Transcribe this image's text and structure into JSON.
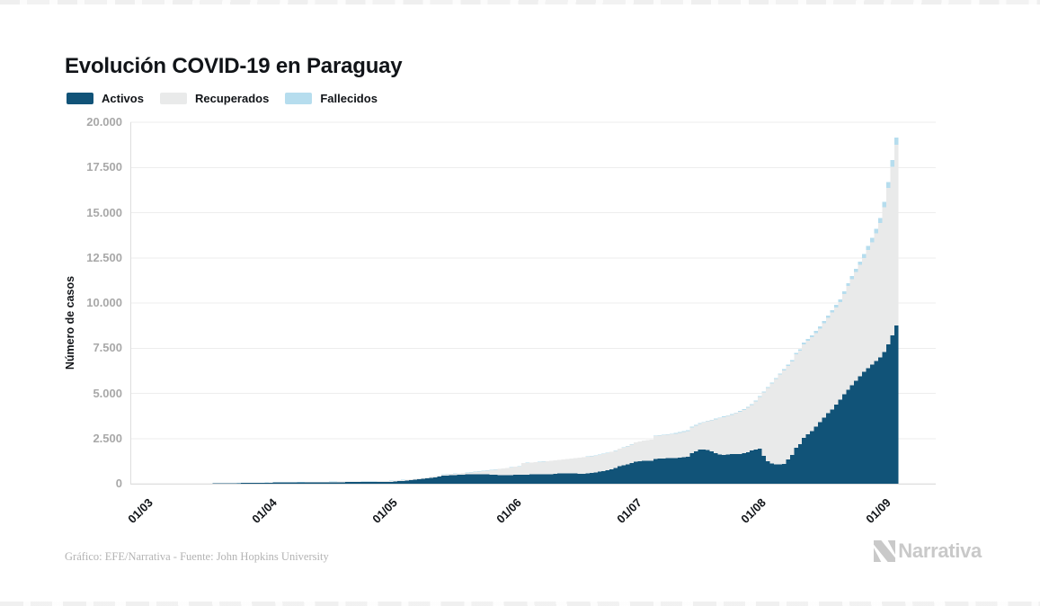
{
  "page": {
    "title": "Evolución COVID-19 en Paraguay"
  },
  "legend": [
    {
      "label": "Activos",
      "color": "#115378"
    },
    {
      "label": "Recuperados",
      "color": "#e9eaea"
    },
    {
      "label": "Fallecidos",
      "color": "#b6ddee"
    }
  ],
  "footer": {
    "credit": "Gráfico: EFE/Narrativa - Fuente: John Hopkins University",
    "brand": "Narrativa"
  },
  "colors": {
    "grid": "#ededed",
    "axis": "#dedede",
    "tick_text": "#a8a8a8",
    "label_text": "#111418",
    "background": "#ffffff"
  },
  "chart_data": {
    "type": "bar",
    "stacked": true,
    "title": "Evolución COVID-19 en Paraguay",
    "xlabel": "",
    "ylabel": "Número de casos",
    "ylim": [
      0,
      20000
    ],
    "grid": "horizontal",
    "legend_position": "top-left",
    "ytick_values": [
      0,
      2500,
      5000,
      7500,
      10000,
      12500,
      15000,
      17500,
      20000
    ],
    "ytick_labels": [
      "0",
      "2.500",
      "5.000",
      "7.500",
      "10.000",
      "12.500",
      "15.000",
      "17.500",
      "20.000"
    ],
    "xticks": [
      {
        "label": "01/03",
        "day": 0
      },
      {
        "label": "01/04",
        "day": 31
      },
      {
        "label": "01/05",
        "day": 61
      },
      {
        "label": "01/06",
        "day": 92
      },
      {
        "label": "01/07",
        "day": 122
      },
      {
        "label": "01/08",
        "day": 153
      },
      {
        "label": "01/09",
        "day": 184
      }
    ],
    "n_days": 188,
    "series": [
      {
        "name": "Activos",
        "color": "#115378",
        "values": [
          0,
          0,
          0,
          0,
          0,
          0,
          1,
          1,
          3,
          5,
          5,
          6,
          7,
          8,
          8,
          9,
          12,
          14,
          17,
          20,
          24,
          28,
          33,
          37,
          41,
          43,
          46,
          49,
          52,
          55,
          57,
          61,
          63,
          65,
          66,
          68,
          70,
          72,
          73,
          74,
          75,
          76,
          77,
          79,
          81,
          82,
          84,
          85,
          86,
          87,
          88,
          89,
          90,
          90,
          91,
          92,
          92,
          93,
          94,
          94,
          95,
          105,
          120,
          140,
          155,
          170,
          195,
          220,
          245,
          270,
          300,
          330,
          360,
          390,
          450,
          460,
          470,
          480,
          490,
          500,
          510,
          515,
          520,
          520,
          520,
          510,
          500,
          490,
          480,
          480,
          480,
          485,
          490,
          495,
          500,
          505,
          510,
          515,
          515,
          515,
          520,
          530,
          545,
          560,
          570,
          580,
          580,
          565,
          550,
          540,
          570,
          600,
          630,
          660,
          700,
          750,
          800,
          870,
          970,
          1030,
          1080,
          1150,
          1220,
          1240,
          1260,
          1270,
          1280,
          1380,
          1390,
          1400,
          1410,
          1420,
          1430,
          1450,
          1470,
          1490,
          1689,
          1788,
          1880,
          1900,
          1860,
          1780,
          1690,
          1620,
          1600,
          1610,
          1630,
          1640,
          1650,
          1690,
          1740,
          1830,
          1900,
          1950,
          1550,
          1250,
          1120,
          1060,
          1060,
          1100,
          1347,
          1593,
          1990,
          2185,
          2530,
          2725,
          2920,
          3165,
          3400,
          3650,
          3900,
          4100,
          4380,
          4650,
          4950,
          5200,
          5450,
          5700,
          5950,
          6200,
          6400,
          6600,
          6800,
          7000,
          7300,
          7700,
          8200,
          8750
        ]
      },
      {
        "name": "Recuperados",
        "color": "#e9eaea",
        "values": [
          0,
          0,
          0,
          0,
          0,
          0,
          0,
          0,
          0,
          0,
          0,
          0,
          0,
          0,
          0,
          0,
          0,
          0,
          0,
          0,
          0,
          0,
          0,
          1,
          1,
          2,
          3,
          3,
          4,
          4,
          5,
          5,
          5,
          6,
          7,
          8,
          8,
          9,
          11,
          13,
          15,
          16,
          18,
          19,
          20,
          22,
          22,
          24,
          26,
          27,
          29,
          30,
          32,
          35,
          37,
          39,
          41,
          43,
          45,
          48,
          50,
          50,
          50,
          50,
          50,
          50,
          50,
          50,
          50,
          50,
          50,
          59,
          59,
          59,
          59,
          64,
          69,
          74,
          79,
          89,
          99,
          114,
          129,
          154,
          179,
          214,
          249,
          289,
          329,
          359,
          389,
          419,
          449,
          454,
          639,
          649,
          658,
          671,
          688,
          706,
          717,
          732,
          742,
          752,
          766,
          781,
          806,
          846,
          885,
          920,
          920,
          920,
          924,
          934,
          944,
          944,
          958,
          958,
          962,
          972,
          991,
          1011,
          1060,
          1089,
          1119,
          1133,
          1148,
          1247,
          1266,
          1285,
          1305,
          1324,
          1343,
          1373,
          1402,
          1432,
          1432,
          1432,
          1439,
          1488,
          1587,
          1726,
          1874,
          2003,
          2082,
          2140,
          2188,
          2256,
          2334,
          2393,
          2461,
          2519,
          2647,
          2845,
          3493,
          4040,
          4418,
          4725,
          4973,
          5180,
          5180,
          5180,
          5180,
          5180,
          5180,
          5180,
          5180,
          5180,
          5190,
          5233,
          5277,
          5370,
          5382,
          5404,
          5545,
          5735,
          5875,
          6015,
          6154,
          6292,
          6530,
          6765,
          7050,
          7430,
          8010,
          8680,
          9340,
          10000
        ]
      },
      {
        "name": "Fallecidos",
        "color": "#b6ddee",
        "values": [
          0,
          0,
          0,
          0,
          0,
          0,
          0,
          0,
          0,
          0,
          0,
          0,
          0,
          0,
          1,
          1,
          1,
          2,
          2,
          2,
          3,
          3,
          3,
          3,
          3,
          3,
          3,
          3,
          3,
          3,
          3,
          4,
          4,
          4,
          4,
          4,
          5,
          5,
          5,
          5,
          5,
          6,
          6,
          6,
          6,
          6,
          7,
          7,
          7,
          8,
          8,
          9,
          9,
          9,
          9,
          9,
          10,
          10,
          10,
          10,
          10,
          10,
          10,
          10,
          10,
          10,
          10,
          10,
          10,
          10,
          10,
          11,
          11,
          11,
          11,
          11,
          11,
          11,
          11,
          11,
          11,
          11,
          11,
          11,
          11,
          11,
          11,
          11,
          11,
          11,
          11,
          11,
          11,
          11,
          11,
          11,
          12,
          12,
          12,
          12,
          13,
          13,
          13,
          13,
          14,
          14,
          14,
          14,
          15,
          15,
          15,
          15,
          16,
          16,
          16,
          16,
          17,
          17,
          18,
          18,
          19,
          19,
          20,
          21,
          21,
          22,
          22,
          23,
          24,
          25,
          25,
          26,
          27,
          27,
          28,
          28,
          29,
          30,
          31,
          32,
          33,
          34,
          36,
          37,
          38,
          40,
          42,
          44,
          46,
          47,
          49,
          51,
          53,
          55,
          57,
          60,
          62,
          65,
          67,
          70,
          73,
          77,
          80,
          85,
          90,
          95,
          100,
          105,
          110,
          117,
          123,
          130,
          138,
          146,
          155,
          165,
          175,
          185,
          196,
          208,
          220,
          235,
          250,
          270,
          290,
          320,
          360,
          400
        ]
      }
    ]
  }
}
